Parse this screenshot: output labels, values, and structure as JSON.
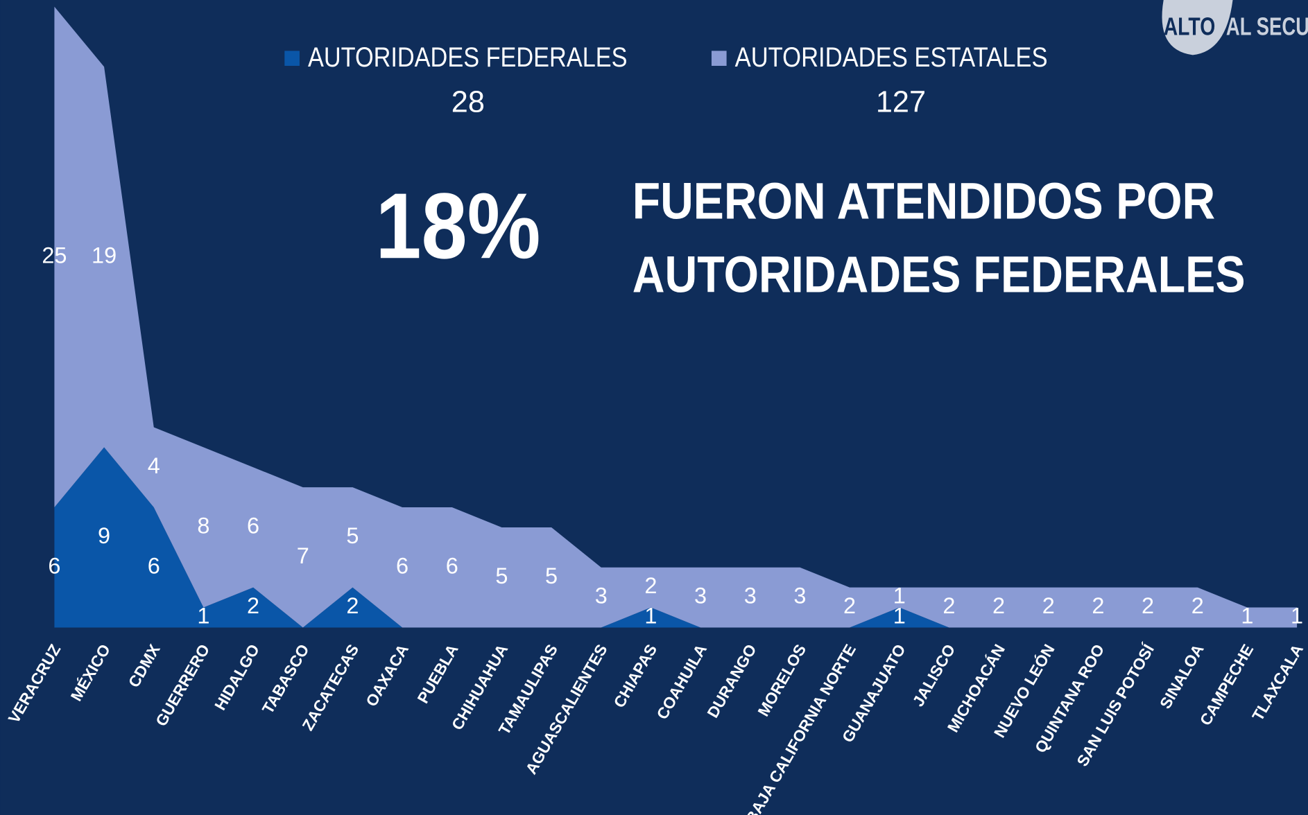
{
  "chart_data": {
    "type": "area",
    "stacked": true,
    "categories": [
      "VERACRUZ",
      "MÉXICO",
      "CDMX",
      "GUERRERO",
      "HIDALGO",
      "TABASCO",
      "ZACATECAS",
      "OAXACA",
      "PUEBLA",
      "CHIHUAHUA",
      "TAMAULIPAS",
      "AGUASCALIENTES",
      "CHIAPAS",
      "COAHUILA",
      "DURANGO",
      "MORELOS",
      "BAJA CALIFORNIA NORTE",
      "GUANAJUATO",
      "JALISCO",
      "MICHOACÁN",
      "NUEVO LEÓN",
      "QUINTANA ROO",
      "SAN LUIS POTOSÍ",
      "SINALOA",
      "CAMPECHE",
      "TLAXCALA"
    ],
    "series": [
      {
        "name": "AUTORIDADES FEDERALES",
        "color": "#0a56a8",
        "total": 28,
        "values": [
          6,
          9,
          6,
          1,
          2,
          0,
          2,
          0,
          0,
          0,
          0,
          0,
          1,
          0,
          0,
          0,
          0,
          1,
          0,
          0,
          0,
          0,
          0,
          0,
          0,
          0
        ]
      },
      {
        "name": "AUTORIDADES ESTATALES",
        "color": "#8a9bd4",
        "total": 127,
        "values": [
          25,
          19,
          4,
          8,
          6,
          7,
          5,
          6,
          6,
          5,
          5,
          3,
          2,
          3,
          3,
          3,
          2,
          1,
          2,
          2,
          2,
          2,
          2,
          2,
          1,
          1
        ]
      }
    ],
    "ylim": [
      0,
      31
    ],
    "annotations": {
      "big_number": "18%",
      "text": [
        "FUERON ATENDIDOS POR",
        "AUTORIDADES FEDERALES"
      ]
    },
    "logo": [
      "ALTO",
      "AL SECU"
    ]
  }
}
